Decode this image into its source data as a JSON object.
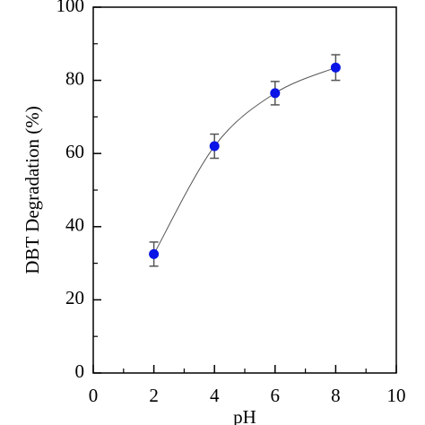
{
  "chart_data": {
    "type": "scatter",
    "x_label": "pH",
    "y_label": "DBT Degradation (%)",
    "x": [
      2,
      4,
      6,
      8
    ],
    "values": [
      32.5,
      62,
      76.5,
      83.5
    ],
    "errors": [
      3.3,
      3.3,
      3.2,
      3.5
    ],
    "color": "#0a14e6",
    "error_color": "#555555",
    "curve_color": "#555555",
    "xlim": [
      0,
      10
    ],
    "xticks": [
      0,
      2,
      4,
      6,
      8,
      10
    ],
    "xminorticks": [
      1,
      3,
      5,
      7,
      9
    ],
    "ylim": [
      0,
      100
    ],
    "yticks": [
      0,
      20,
      40,
      60,
      80,
      100
    ],
    "yminorticks": [
      10,
      30,
      50,
      70,
      90
    ],
    "smooth_curve": true
  }
}
